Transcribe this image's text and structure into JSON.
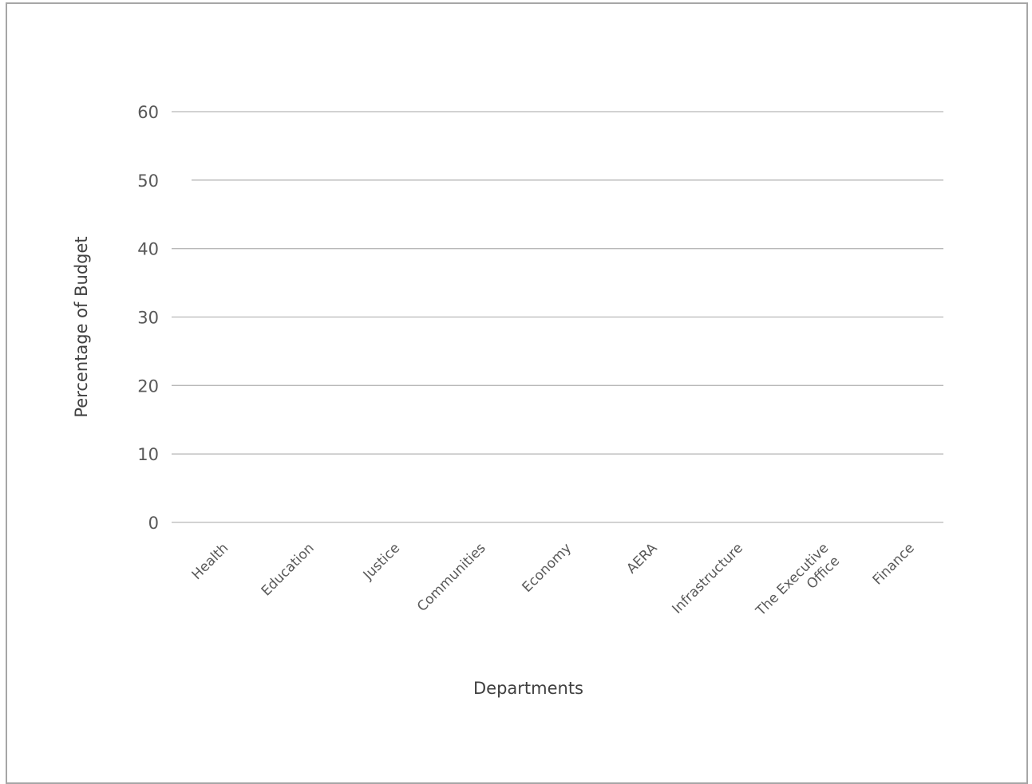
{
  "chart_data": {
    "type": "bar",
    "title": "",
    "xlabel": "Departments",
    "ylabel": "Percentage of Budget",
    "categories": [
      "Health",
      "Education",
      "Justice",
      "Communities",
      "Economy",
      "AERA",
      "Infrastructure",
      "The Executive Office",
      "Finance"
    ],
    "values": [
      null,
      null,
      null,
      null,
      null,
      null,
      null,
      null,
      null
    ],
    "ylim": [
      0,
      60
    ],
    "yticks": [
      0,
      10,
      20,
      30,
      40,
      50,
      60
    ],
    "grid": true,
    "legend": "none"
  },
  "colors": {
    "gridline": "#b8b8b8",
    "tick_text": "#595959",
    "axis_title": "#404040",
    "frame_border": "#a6a6a6"
  }
}
